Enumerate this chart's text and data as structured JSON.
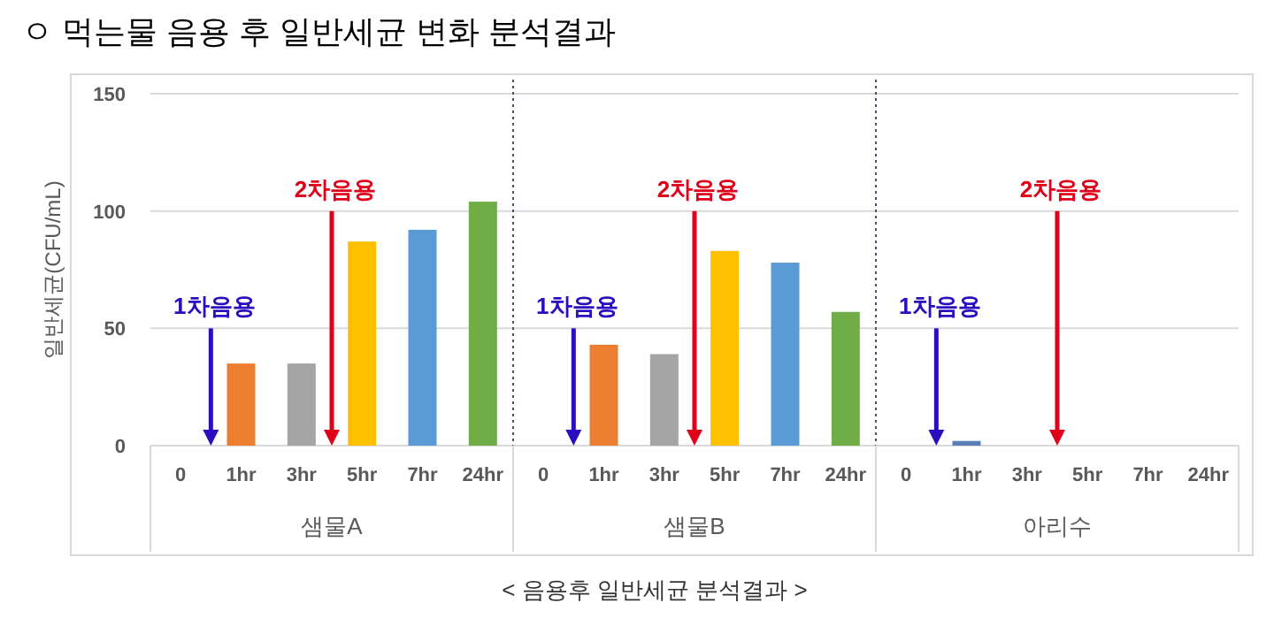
{
  "chart_data": [
    {
      "type": "bar",
      "title": "ㅇ 먹는물 음용 후 일반세균 변화 분석결과",
      "ylabel": "일반세균(CFU/mL)",
      "xlabel": "샘물A",
      "categories": [
        "0",
        "1hr",
        "3hr",
        "5hr",
        "7hr",
        "24hr"
      ],
      "values": [
        0,
        35,
        35,
        87,
        92,
        104
      ],
      "colors": [
        "#ed7d31",
        "#ed7d31",
        "#a5a5a5",
        "#ffc000",
        "#5b9bd5",
        "#70ad47"
      ],
      "ylim": [
        0,
        150
      ],
      "yticks": [
        0,
        50,
        100,
        150
      ],
      "grid": "y",
      "annotations": [
        "1차음용",
        "2차음용",
        "< 음용후 일반세균 분석결과 >"
      ]
    },
    {
      "type": "bar",
      "xlabel": "샘물B",
      "categories": [
        "0",
        "1hr",
        "3hr",
        "5hr",
        "7hr",
        "24hr"
      ],
      "values": [
        0,
        43,
        39,
        83,
        78,
        57
      ],
      "colors": [
        "#ed7d31",
        "#ed7d31",
        "#a5a5a5",
        "#ffc000",
        "#5b9bd5",
        "#70ad47"
      ],
      "ylim": [
        0,
        150
      ],
      "yticks": [
        0,
        50,
        100,
        150
      ],
      "grid": "y",
      "tick_labels": "x",
      "annotations": [
        "1차음용",
        "2차음용"
      ]
    },
    {
      "type": "bar",
      "xlabel": "아리수",
      "categories": [
        "0",
        "1hr",
        "3hr",
        "5hr",
        "7hr",
        "24hr"
      ],
      "values": [
        0,
        2,
        0,
        0,
        0,
        0
      ],
      "colors": [
        "#5b7fb5",
        "#5b7fb5",
        "#a5a5a5",
        "#ffc000",
        "#5b9bd5",
        "#70ad47"
      ],
      "ylim": [
        0,
        150
      ],
      "yticks": [
        0,
        50,
        100,
        150
      ],
      "grid": "y",
      "tick_labels": "x",
      "annotations": [
        "1차음용",
        "2차음용"
      ]
    }
  ]
}
